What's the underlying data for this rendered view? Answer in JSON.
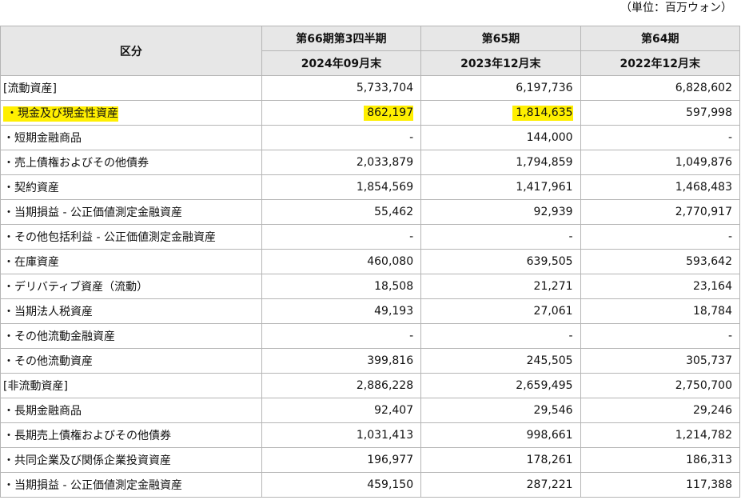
{
  "unit_note": "（単位：百万ウォン）",
  "header": {
    "category": "区分",
    "periods": [
      {
        "name": "第66期第3四半期",
        "date": "2024年09月末"
      },
      {
        "name": "第65期",
        "date": "2023年12月末"
      },
      {
        "name": "第64期",
        "date": "2022年12月末"
      }
    ]
  },
  "highlight_color": "#ffef00",
  "rows": [
    {
      "label": "[流動資産]",
      "values": [
        "5,733,704",
        "6,197,736",
        "6,828,602"
      ],
      "highlight": [
        false,
        false,
        false,
        false
      ]
    },
    {
      "label": "・現金及び現金性資産",
      "values": [
        "862,197",
        "1,814,635",
        "597,998"
      ],
      "highlight": [
        true,
        true,
        true,
        false
      ]
    },
    {
      "label": "・短期金融商品",
      "values": [
        "-",
        "144,000",
        "-"
      ],
      "highlight": [
        false,
        false,
        false,
        false
      ]
    },
    {
      "label": "・売上債権およびその他債券",
      "values": [
        "2,033,879",
        "1,794,859",
        "1,049,876"
      ],
      "highlight": [
        false,
        false,
        false,
        false
      ]
    },
    {
      "label": "・契約資産",
      "values": [
        "1,854,569",
        "1,417,961",
        "1,468,483"
      ],
      "highlight": [
        false,
        false,
        false,
        false
      ]
    },
    {
      "label": "・当期損益 - 公正価値測定金融資産",
      "values": [
        "55,462",
        "92,939",
        "2,770,917"
      ],
      "highlight": [
        false,
        false,
        false,
        false
      ]
    },
    {
      "label": "・その他包括利益 - 公正価値測定金融資産",
      "values": [
        "-",
        "-",
        "-"
      ],
      "highlight": [
        false,
        false,
        false,
        false
      ]
    },
    {
      "label": "・在庫資産",
      "values": [
        "460,080",
        "639,505",
        "593,642"
      ],
      "highlight": [
        false,
        false,
        false,
        false
      ]
    },
    {
      "label": "・デリバティブ資産（流動）",
      "values": [
        "18,508",
        "21,271",
        "23,164"
      ],
      "highlight": [
        false,
        false,
        false,
        false
      ]
    },
    {
      "label": "・当期法人税資産",
      "values": [
        "49,193",
        "27,061",
        "18,784"
      ],
      "highlight": [
        false,
        false,
        false,
        false
      ]
    },
    {
      "label": "・その他流動金融資産",
      "values": [
        "-",
        "-",
        "-"
      ],
      "highlight": [
        false,
        false,
        false,
        false
      ]
    },
    {
      "label": "・その他流動資産",
      "values": [
        "399,816",
        "245,505",
        "305,737"
      ],
      "highlight": [
        false,
        false,
        false,
        false
      ]
    },
    {
      "label": "[非流動資産]",
      "values": [
        "2,886,228",
        "2,659,495",
        "2,750,700"
      ],
      "highlight": [
        false,
        false,
        false,
        false
      ]
    },
    {
      "label": "・長期金融商品",
      "values": [
        "92,407",
        "29,546",
        "29,246"
      ],
      "highlight": [
        false,
        false,
        false,
        false
      ]
    },
    {
      "label": "・長期売上債権およびその他債券",
      "values": [
        "1,031,413",
        "998,661",
        "1,214,782"
      ],
      "highlight": [
        false,
        false,
        false,
        false
      ]
    },
    {
      "label": "・共同企業及び関係企業投資資産",
      "values": [
        "196,977",
        "178,261",
        "186,313"
      ],
      "highlight": [
        false,
        false,
        false,
        false
      ]
    },
    {
      "label": "・当期損益 - 公正価値測定金融資産",
      "values": [
        "459,150",
        "287,221",
        "117,388"
      ],
      "highlight": [
        false,
        false,
        false,
        false
      ]
    }
  ]
}
